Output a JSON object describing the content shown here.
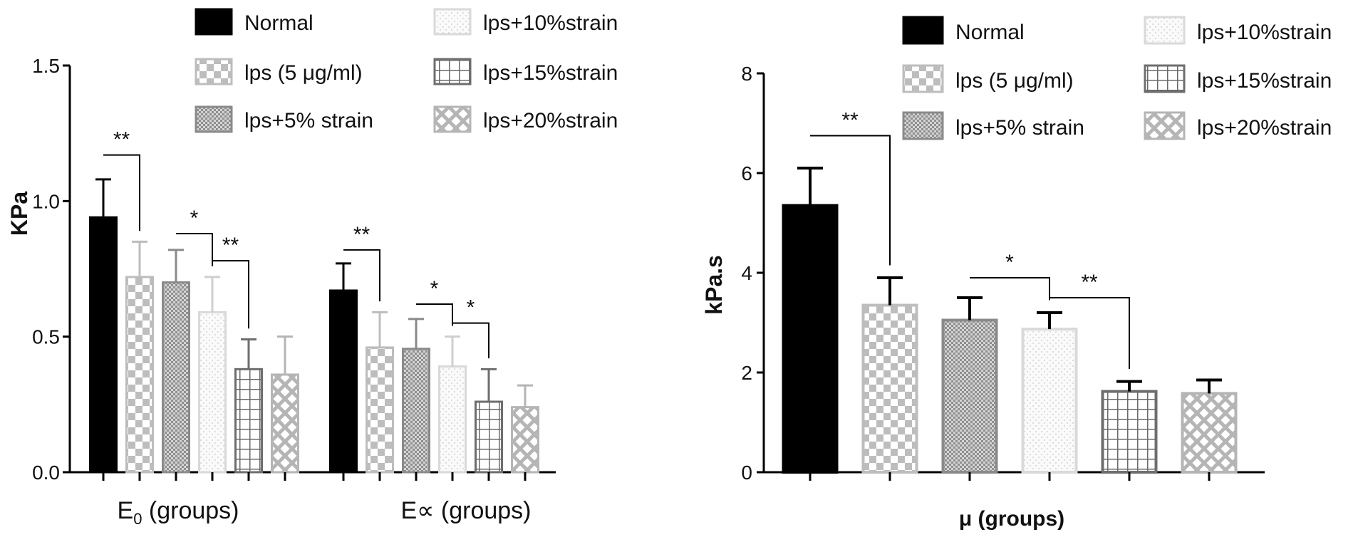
{
  "legend_entries": [
    "Normal",
    "lps (5 μg/ml)",
    "lps+5% strain",
    "lps+10%strain",
    "lps+15%strain",
    "lps+20%strain"
  ],
  "chart_data": [
    {
      "type": "bar",
      "ylabel": "KPa",
      "xlabel_groups": [
        "E0 (groups)",
        "E∝ (groups)"
      ],
      "ylim": [
        0,
        1.5
      ],
      "yticks": [
        "0.0",
        "0.5",
        "1.0",
        "1.5"
      ],
      "legend_placement": "top",
      "series": [
        {
          "name": "Normal",
          "values": [
            0.94,
            0.67
          ],
          "errors": [
            0.14,
            0.1
          ]
        },
        {
          "name": "lps (5 μg/ml)",
          "values": [
            0.72,
            0.46
          ],
          "errors": [
            0.13,
            0.13
          ]
        },
        {
          "name": "lps+5% strain",
          "values": [
            0.7,
            0.455
          ],
          "errors": [
            0.12,
            0.11
          ]
        },
        {
          "name": "lps+10%strain",
          "values": [
            0.59,
            0.39
          ],
          "errors": [
            0.13,
            0.11
          ]
        },
        {
          "name": "lps+15%strain",
          "values": [
            0.38,
            0.26
          ],
          "errors": [
            0.11,
            0.12
          ]
        },
        {
          "name": "lps+20%strain",
          "values": [
            0.36,
            0.24
          ],
          "errors": [
            0.14,
            0.08
          ]
        }
      ],
      "significance": [
        {
          "group": 0,
          "from": 0,
          "to": 1,
          "y": 1.17,
          "label": "**"
        },
        {
          "group": 0,
          "from": 2,
          "to": 3,
          "y": 0.88,
          "label": "*"
        },
        {
          "group": 0,
          "from": 3,
          "to": 4,
          "y": 0.78,
          "label": "**"
        },
        {
          "group": 1,
          "from": 0,
          "to": 1,
          "y": 0.82,
          "label": "**"
        },
        {
          "group": 1,
          "from": 2,
          "to": 3,
          "y": 0.62,
          "label": "*"
        },
        {
          "group": 1,
          "from": 3,
          "to": 4,
          "y": 0.55,
          "label": "*"
        }
      ]
    },
    {
      "type": "bar",
      "ylabel": "kPa.s",
      "xlabel": "μ (groups)",
      "ylim": [
        0,
        8
      ],
      "yticks": [
        "0",
        "2",
        "4",
        "6",
        "8"
      ],
      "legend_placement": "top",
      "series": [
        {
          "name": "Normal",
          "value": 5.35,
          "error": 0.75
        },
        {
          "name": "lps (5 μg/ml)",
          "value": 3.35,
          "error": 0.55
        },
        {
          "name": "lps+5% strain",
          "value": 3.05,
          "error": 0.45
        },
        {
          "name": "lps+10%strain",
          "value": 2.87,
          "error": 0.33
        },
        {
          "name": "lps+15%strain",
          "value": 1.62,
          "error": 0.2
        },
        {
          "name": "lps+20%strain",
          "value": 1.58,
          "error": 0.27
        }
      ],
      "significance": [
        {
          "from": 0,
          "to": 1,
          "y": 6.75,
          "label": "**"
        },
        {
          "from": 2,
          "to": 3,
          "y": 3.9,
          "label": "*"
        },
        {
          "from": 3,
          "to": 4,
          "y": 3.5,
          "label": "**"
        }
      ]
    }
  ]
}
